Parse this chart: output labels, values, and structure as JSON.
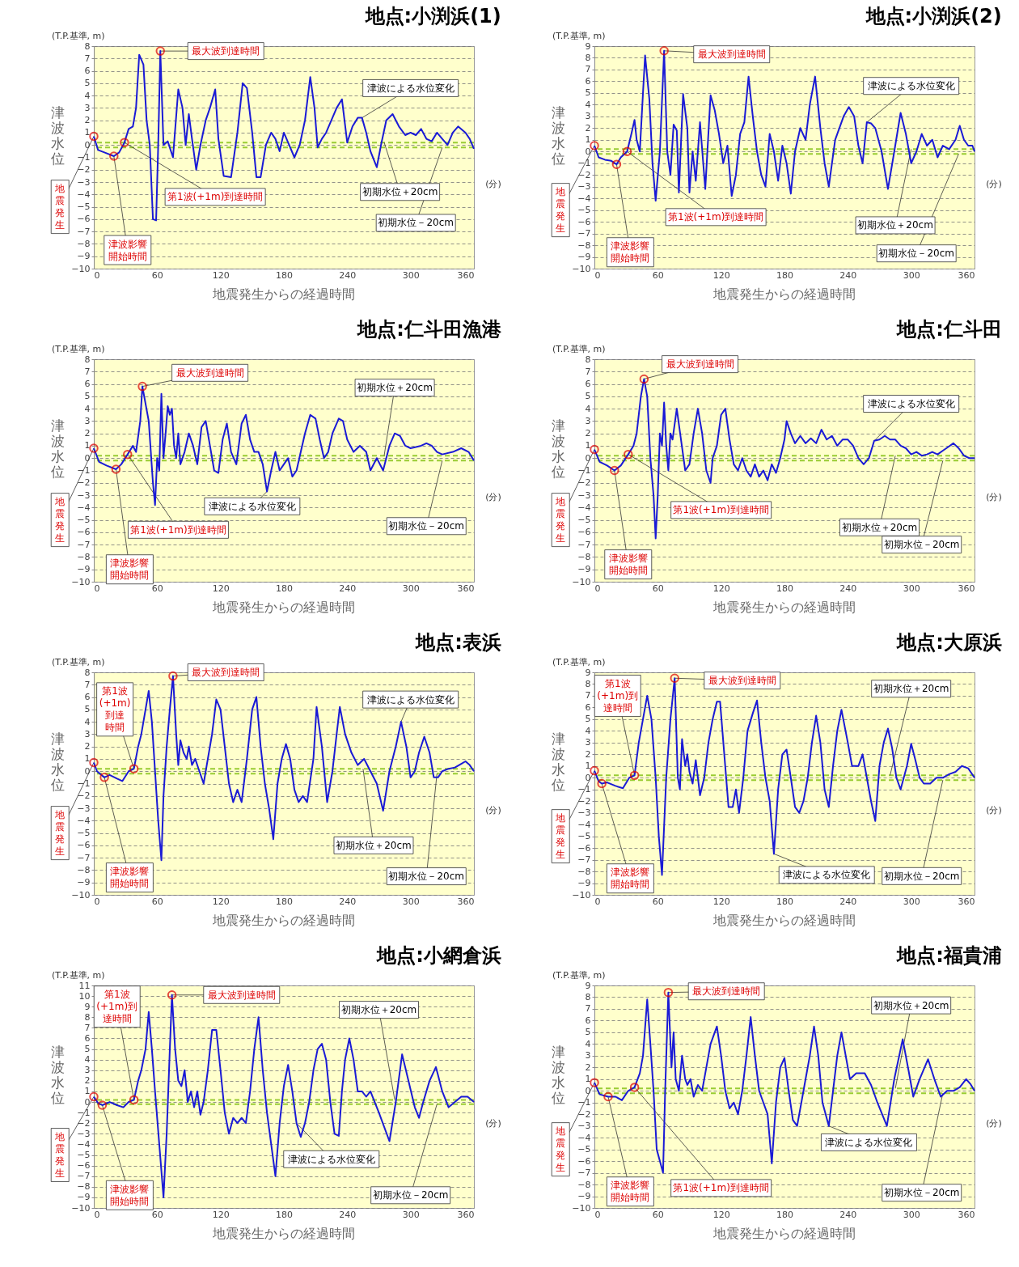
{
  "chart_data": [
    {
      "type": "line",
      "title": "地点:小渕浜(1)",
      "xlabel": "地震発生からの経過時間",
      "ylabel": "津波水位",
      "xlim": [
        0,
        360
      ],
      "xticks": [
        0,
        60,
        120,
        180,
        240,
        300,
        360
      ],
      "ylim": [
        -10,
        8
      ],
      "yticks": [
        -10,
        -9,
        -8,
        -7,
        -6,
        -5,
        -4,
        -3,
        -2,
        -1,
        0,
        1,
        2,
        3,
        4,
        5,
        6,
        7,
        8
      ],
      "grid": "y",
      "series": [
        {
          "color": "#1a1ad6",
          "x": [
            0,
            4,
            10,
            19,
            24,
            29,
            33,
            37,
            40,
            43,
            47,
            50,
            53,
            56,
            59,
            61,
            63,
            66,
            70,
            75,
            80,
            84,
            87,
            90,
            93,
            97,
            101,
            106,
            110,
            115,
            118,
            123,
            130,
            136,
            141,
            145,
            150,
            154,
            158,
            163,
            168,
            172,
            176,
            180,
            185,
            190,
            195,
            200,
            205,
            209,
            212,
            216,
            220,
            225,
            230,
            235,
            240,
            245,
            250,
            254,
            258,
            262,
            268,
            272,
            277,
            283,
            289,
            295,
            300,
            305,
            310,
            315,
            320,
            325,
            330,
            335,
            340,
            345,
            352,
            356,
            360
          ],
          "values": [
            0.7,
            -0.4,
            -0.6,
            -0.9,
            -0.6,
            0.2,
            1.3,
            1.5,
            3,
            7.3,
            6.5,
            2,
            0,
            -6,
            -6.1,
            0,
            7.6,
            0,
            0.3,
            -1,
            4.5,
            3,
            0,
            2.5,
            0.5,
            -2,
            0,
            2,
            3,
            4.5,
            0.5,
            -2.5,
            -2.6,
            1,
            5,
            4.6,
            1,
            -2.6,
            -2.6,
            0,
            1,
            0.5,
            -0.5,
            1,
            0,
            -1,
            0,
            2,
            5.5,
            3,
            -0.2,
            0.5,
            1,
            2,
            3,
            3.7,
            0.2,
            1.5,
            2.2,
            2.2,
            1,
            -0.5,
            -1.8,
            0,
            2,
            2.5,
            1.5,
            0.8,
            1,
            0.8,
            1.3,
            0.5,
            0.3,
            1,
            0.5,
            0,
            1,
            1.5,
            1,
            0.5,
            -0.3
          ]
        }
      ],
      "ref_lines": [
        {
          "axis": "y",
          "value": 0.2,
          "label": "初期水位＋20cm",
          "color": "#99cc33",
          "line_style": "dashed"
        },
        {
          "axis": "y",
          "value": -0.2,
          "label": "初期水位－20cm",
          "color": "#99cc33",
          "line_style": "dashed"
        }
      ],
      "annotations": [
        {
          "text": "地震発生",
          "x": 0,
          "y": 0.7
        },
        {
          "text": "津波影響開始時間",
          "x": 19,
          "y": -0.9
        },
        {
          "text": "第1波(+1m)到達時間",
          "x": 29,
          "y": 0.2
        },
        {
          "text": "最大波到達時間",
          "x": 63,
          "y": 7.6
        },
        {
          "text": "津波による水位変化",
          "x": 254,
          "y": 2.2
        },
        "(T.P.基準, m)",
        "(分)"
      ]
    },
    {
      "type": "line",
      "title": "地点:小渕浜(2)",
      "xlabel": "地震発生からの経過時間",
      "ylabel": "津波水位",
      "xlim": [
        0,
        360
      ],
      "xticks": [
        0,
        60,
        120,
        180,
        240,
        300,
        360
      ],
      "ylim": [
        -10,
        9
      ],
      "yticks": [
        -10,
        -9,
        -8,
        -7,
        -6,
        -5,
        -4,
        -3,
        -2,
        -1,
        0,
        1,
        2,
        3,
        4,
        5,
        6,
        7,
        8,
        9
      ],
      "grid": "y",
      "series": [
        {
          "color": "#1a1ad6",
          "x": [
            0,
            4,
            10,
            16,
            21,
            25,
            31,
            35,
            38,
            40,
            43,
            46,
            48,
            52,
            55,
            58,
            62,
            66,
            69,
            72,
            75,
            78,
            80,
            84,
            88,
            90,
            93,
            96,
            100,
            105,
            110,
            114,
            118,
            122,
            126,
            130,
            134,
            138,
            142,
            146,
            150,
            154,
            158,
            162,
            166,
            170,
            174,
            178,
            182,
            186,
            190,
            195,
            200,
            204,
            209,
            214,
            218,
            222,
            228,
            232,
            236,
            241,
            246,
            250,
            254,
            258,
            262,
            266,
            272,
            278,
            284,
            290,
            295,
            300,
            305,
            310,
            315,
            320,
            325,
            330,
            336,
            342,
            346,
            350,
            354,
            358,
            360
          ],
          "values": [
            0.5,
            -0.5,
            -0.7,
            -0.8,
            -1.1,
            -0.5,
            0,
            1.5,
            2.7,
            1,
            0,
            5,
            8.2,
            4.5,
            -1,
            -4.2,
            0,
            8.6,
            0,
            -2,
            2.3,
            1.8,
            -3.5,
            4.9,
            2,
            -3.5,
            0,
            -2.5,
            2.5,
            -3.2,
            4.8,
            3.5,
            1.5,
            -1,
            0.5,
            -3.8,
            -2,
            1.5,
            2.5,
            6.4,
            3,
            0,
            -2,
            -3,
            1.5,
            0,
            -2.5,
            0.5,
            -1,
            -3.6,
            0,
            2,
            1,
            4,
            6.4,
            2,
            -1,
            -3,
            1,
            2,
            3,
            3.8,
            3,
            0.5,
            -1,
            2.5,
            2.4,
            2,
            0,
            -3.2,
            0,
            3.3,
            1.5,
            -1,
            0,
            1.5,
            0.5,
            1,
            -0.5,
            0.5,
            0.2,
            1,
            2.2,
            1,
            0.5,
            0.5,
            0
          ]
        }
      ],
      "ref_lines": [
        {
          "axis": "y",
          "value": 0.2,
          "label": "初期水位＋20cm",
          "color": "#99cc33",
          "line_style": "dashed"
        },
        {
          "axis": "y",
          "value": -0.2,
          "label": "初期水位－20cm",
          "color": "#99cc33",
          "line_style": "dashed"
        }
      ],
      "annotations": [
        {
          "text": "地震発生",
          "x": 0,
          "y": 0.5
        },
        {
          "text": "津波影響開始時間",
          "x": 21,
          "y": -1.1
        },
        {
          "text": "第1波(+1m)到達時間",
          "x": 31,
          "y": 0
        },
        {
          "text": "最大波到達時間",
          "x": 66,
          "y": 8.6
        },
        {
          "text": "津波による水位変化",
          "x": 258,
          "y": 2.5
        },
        "(T.P.基準, m)",
        "(分)"
      ]
    },
    {
      "type": "line",
      "title": "地点:仁斗田漁港",
      "xlabel": "地震発生からの経過時間",
      "ylabel": "津波水位",
      "xlim": [
        0,
        360
      ],
      "xticks": [
        0,
        60,
        120,
        180,
        240,
        300,
        360
      ],
      "ylim": [
        -10,
        8
      ],
      "yticks": [
        -10,
        -9,
        -8,
        -7,
        -6,
        -5,
        -4,
        -3,
        -2,
        -1,
        0,
        1,
        2,
        3,
        4,
        5,
        6,
        7,
        8
      ],
      "grid": "y",
      "series": [
        {
          "color": "#1a1ad6",
          "x": [
            0,
            5,
            12,
            21,
            26,
            32,
            37,
            40,
            44,
            46,
            52,
            56,
            58,
            60,
            62,
            64,
            66,
            68,
            70,
            72,
            74,
            76,
            78,
            80,
            82,
            86,
            90,
            94,
            98,
            102,
            106,
            110,
            114,
            118,
            122,
            126,
            130,
            135,
            140,
            144,
            148,
            152,
            156,
            160,
            164,
            168,
            172,
            176,
            180,
            184,
            188,
            192,
            196,
            200,
            205,
            210,
            214,
            218,
            222,
            226,
            232,
            236,
            240,
            246,
            252,
            258,
            262,
            268,
            274,
            280,
            285,
            290,
            295,
            300,
            310,
            315,
            320,
            325,
            330,
            340,
            348,
            355,
            360
          ],
          "values": [
            0.8,
            -0.3,
            -0.6,
            -0.9,
            -0.5,
            0.3,
            1,
            0.5,
            3,
            5.8,
            3,
            -2,
            -3.8,
            0,
            -1,
            5.2,
            0,
            2,
            4.2,
            3.5,
            4,
            1,
            0,
            2,
            -0.5,
            0.5,
            2,
            1,
            -0.5,
            2.5,
            3,
            1,
            -1,
            -1.2,
            1.5,
            2.8,
            0.5,
            -0.5,
            2.8,
            3.5,
            1.5,
            0.5,
            0.5,
            -0.5,
            -2.7,
            -1,
            0.5,
            -1,
            -0.5,
            0,
            -1.5,
            -1,
            0.5,
            2,
            3.5,
            3.2,
            1.5,
            0,
            0.5,
            2,
            3.2,
            3,
            1.5,
            0.5,
            1,
            0.5,
            -1,
            0,
            -1,
            1,
            2,
            1.8,
            1,
            0.8,
            1,
            1.2,
            1,
            0.5,
            0.3,
            0.5,
            0.8,
            0.5,
            -0.2
          ]
        }
      ],
      "ref_lines": [
        {
          "axis": "y",
          "value": 0.2,
          "label": "初期水位＋20cm",
          "color": "#99cc33",
          "line_style": "dashed"
        },
        {
          "axis": "y",
          "value": -0.2,
          "label": "初期水位－20cm",
          "color": "#99cc33",
          "line_style": "dashed"
        }
      ],
      "annotations": [
        {
          "text": "地震発生",
          "x": 0,
          "y": 0.8
        },
        {
          "text": "津波影響開始時間",
          "x": 21,
          "y": -0.9
        },
        {
          "text": "第1波(+1m)到達時間",
          "x": 32,
          "y": 0.3
        },
        {
          "text": "最大波到達時間",
          "x": 46,
          "y": 5.8
        },
        {
          "text": "津波による水位変化",
          "x": 164,
          "y": -2.7
        },
        "(T.P.基準, m)",
        "(分)"
      ]
    },
    {
      "type": "line",
      "title": "地点:仁斗田",
      "xlabel": "地震発生からの経過時間",
      "ylabel": "津波水位",
      "xlim": [
        0,
        360
      ],
      "xticks": [
        0,
        60,
        120,
        180,
        240,
        300,
        360
      ],
      "ylim": [
        -10,
        8
      ],
      "yticks": [
        -10,
        -9,
        -8,
        -7,
        -6,
        -5,
        -4,
        -3,
        -2,
        -1,
        0,
        1,
        2,
        3,
        4,
        5,
        6,
        7,
        8
      ],
      "grid": "y",
      "series": [
        {
          "color": "#1a1ad6",
          "x": [
            0,
            5,
            12,
            19,
            25,
            32,
            37,
            40,
            44,
            47,
            50,
            53,
            56,
            58,
            60,
            62,
            64,
            66,
            68,
            70,
            72,
            74,
            78,
            82,
            86,
            90,
            94,
            98,
            102,
            106,
            110,
            112,
            116,
            120,
            124,
            128,
            132,
            136,
            140,
            144,
            148,
            152,
            156,
            160,
            164,
            168,
            172,
            176,
            180,
            182,
            186,
            190,
            195,
            200,
            205,
            210,
            215,
            220,
            225,
            230,
            235,
            240,
            245,
            250,
            255,
            260,
            265,
            270,
            275,
            280,
            285,
            290,
            295,
            300,
            305,
            310,
            315,
            320,
            325,
            330,
            335,
            340,
            345,
            350,
            355,
            360
          ],
          "values": [
            0.7,
            -0.3,
            -0.6,
            -1,
            -0.6,
            0.3,
            1,
            2,
            5,
            6.4,
            5,
            0,
            -3,
            -6.5,
            -3,
            2,
            1,
            4.5,
            1,
            -1,
            2,
            1.5,
            4,
            1.5,
            -1,
            -0.5,
            2,
            4,
            2,
            -1,
            -2,
            0,
            1,
            3.5,
            4,
            1.5,
            -0.5,
            -1,
            0,
            -1,
            -1.5,
            -0.5,
            -1.5,
            -1,
            -1.8,
            -0.5,
            -1.2,
            0,
            1.5,
            3,
            2,
            1.2,
            1.8,
            1.2,
            1.6,
            1.2,
            2.3,
            1.5,
            1.8,
            1,
            1.5,
            1.5,
            1,
            0,
            -0.5,
            0,
            1.4,
            1.5,
            1.8,
            1.5,
            1.5,
            1,
            0.8,
            0.3,
            0.5,
            0.2,
            0.3,
            0.5,
            0.3,
            0.6,
            0.9,
            1.2,
            0.8,
            0.2,
            0,
            0
          ]
        }
      ],
      "ref_lines": [
        {
          "axis": "y",
          "value": 0.2,
          "label": "初期水位＋20cm",
          "color": "#99cc33",
          "line_style": "dashed"
        },
        {
          "axis": "y",
          "value": -0.2,
          "label": "初期水位－20cm",
          "color": "#99cc33",
          "line_style": "dashed"
        }
      ],
      "annotations": [
        {
          "text": "地震発生",
          "x": 0,
          "y": 0.7
        },
        {
          "text": "津波影響開始時間",
          "x": 19,
          "y": -1
        },
        {
          "text": "第1波(+1m)到達時間",
          "x": 32,
          "y": 0.3
        },
        {
          "text": "最大波到達時間",
          "x": 47,
          "y": 6.4
        },
        {
          "text": "津波による水位変化",
          "x": 265,
          "y": 1.4
        },
        "(T.P.基準, m)",
        "(分)"
      ]
    },
    {
      "type": "line",
      "title": "地点:表浜",
      "xlabel": "地震発生からの経過時間",
      "ylabel": "津波水位",
      "xlim": [
        0,
        360
      ],
      "xticks": [
        0,
        60,
        120,
        180,
        240,
        300,
        360
      ],
      "ylim": [
        -10,
        8
      ],
      "yticks": [
        -10,
        -9,
        -8,
        -7,
        -6,
        -5,
        -4,
        -3,
        -2,
        -1,
        0,
        1,
        2,
        3,
        4,
        5,
        6,
        7,
        8
      ],
      "grid": "y",
      "series": [
        {
          "color": "#1a1ad6",
          "x": [
            0,
            3,
            10,
            15,
            22,
            27,
            33,
            38,
            42,
            45,
            49,
            52,
            55,
            58,
            61,
            64,
            66,
            69,
            72,
            75,
            78,
            80,
            82,
            85,
            88,
            90,
            93,
            96,
            100,
            104,
            108,
            112,
            116,
            120,
            124,
            128,
            132,
            136,
            140,
            145,
            150,
            154,
            158,
            162,
            166,
            170,
            174,
            178,
            182,
            186,
            190,
            194,
            198,
            202,
            208,
            211,
            216,
            221,
            226,
            230,
            233,
            238,
            244,
            250,
            256,
            262,
            268,
            274,
            280,
            286,
            291,
            296,
            300,
            304,
            308,
            313,
            318,
            322,
            326,
            330,
            336,
            342,
            348,
            352,
            356,
            360
          ],
          "values": [
            0.7,
            0,
            -0.5,
            -0.3,
            -0.6,
            -0.8,
            0,
            0.2,
            2,
            3,
            5,
            6.5,
            4,
            0,
            -4,
            -7.2,
            -2,
            2,
            5,
            7.7,
            3,
            0.5,
            2.5,
            1.5,
            1,
            2,
            0.5,
            1,
            0,
            -1,
            1,
            3,
            5.8,
            5,
            2,
            -1,
            -2.5,
            -1.5,
            -2.5,
            1,
            5,
            6,
            2,
            -1,
            -3,
            -5.5,
            -1,
            1,
            2.2,
            1,
            -1.5,
            -2.5,
            -2,
            -2.5,
            1,
            5.2,
            2,
            -2.5,
            0,
            3,
            5.2,
            3,
            1.5,
            0.5,
            1,
            0,
            -1,
            -3.2,
            0,
            2,
            4,
            2,
            -0.5,
            0,
            1.5,
            2.8,
            1.5,
            -0.5,
            -0.5,
            0,
            0.2,
            0.3,
            0.6,
            0.8,
            0.5,
            0
          ]
        }
      ],
      "ref_lines": [
        {
          "axis": "y",
          "value": 0.2,
          "label": "初期水位＋20cm",
          "color": "#99cc33",
          "line_style": "dashed"
        },
        {
          "axis": "y",
          "value": -0.2,
          "label": "初期水位－20cm",
          "color": "#99cc33",
          "line_style": "dashed"
        }
      ],
      "annotations": [
        {
          "text": "地震発生",
          "x": 0,
          "y": 0.7
        },
        {
          "text": "津波影響開始時間",
          "x": 10,
          "y": -0.5
        },
        {
          "text": "第1波(+1m)到達時間",
          "x": 38,
          "y": 0.2
        },
        {
          "text": "最大波到達時間",
          "x": 75,
          "y": 7.7
        },
        {
          "text": "津波による水位変化",
          "x": 291,
          "y": 4
        },
        "(T.P.基準, m)",
        "(分)"
      ]
    },
    {
      "type": "line",
      "title": "地点:大原浜",
      "xlabel": "地震発生からの経過時間",
      "ylabel": "津波水位",
      "xlim": [
        0,
        360
      ],
      "xticks": [
        0,
        60,
        120,
        180,
        240,
        300,
        360
      ],
      "ylim": [
        -10,
        9
      ],
      "yticks": [
        -10,
        -9,
        -8,
        -7,
        -6,
        -5,
        -4,
        -3,
        -2,
        -1,
        0,
        1,
        2,
        3,
        4,
        5,
        6,
        7,
        8,
        9
      ],
      "grid": "y",
      "series": [
        {
          "color": "#1a1ad6",
          "x": [
            0,
            4,
            7,
            12,
            20,
            27,
            33,
            38,
            42,
            46,
            50,
            54,
            58,
            61,
            64,
            68,
            72,
            76,
            79,
            81,
            83,
            86,
            88,
            90,
            93,
            96,
            100,
            104,
            108,
            112,
            116,
            119,
            123,
            127,
            131,
            134,
            137,
            141,
            145,
            150,
            154,
            158,
            162,
            166,
            170,
            174,
            178,
            182,
            186,
            190,
            194,
            198,
            202,
            206,
            210,
            214,
            218,
            222,
            226,
            230,
            234,
            240,
            244,
            250,
            254,
            258,
            262,
            266,
            270,
            274,
            278,
            282,
            286,
            290,
            296,
            300,
            304,
            308,
            312,
            318,
            324,
            330,
            336,
            342,
            348,
            354,
            360
          ],
          "values": [
            0.6,
            -0.3,
            -0.5,
            -0.4,
            -0.7,
            -0.9,
            0,
            0.2,
            3,
            5,
            7,
            5,
            0,
            -5,
            -8.3,
            0,
            5,
            8.5,
            0,
            -1,
            3.3,
            1,
            2,
            0.5,
            -0.5,
            1.5,
            -1.5,
            0,
            3,
            5,
            6.5,
            6.5,
            2,
            -2.5,
            -2.5,
            -1,
            -3,
            0,
            4,
            5.5,
            6.6,
            3,
            0,
            -2,
            -6.5,
            -1,
            2,
            2.4,
            0,
            -2.5,
            -3,
            -2,
            0,
            3,
            5.3,
            3,
            -1,
            -2.5,
            1,
            4,
            5.8,
            3,
            1,
            1,
            2,
            0,
            -2,
            -3.7,
            1,
            3,
            4.2,
            2.5,
            0,
            -1,
            1,
            2.9,
            1.5,
            0,
            -0.5,
            -0.5,
            0,
            0,
            0.3,
            0.5,
            1,
            0.8,
            0
          ]
        }
      ],
      "ref_lines": [
        {
          "axis": "y",
          "value": 0.2,
          "label": "初期水位＋20cm",
          "color": "#99cc33",
          "line_style": "dashed"
        },
        {
          "axis": "y",
          "value": -0.2,
          "label": "初期水位－20cm",
          "color": "#99cc33",
          "line_style": "dashed"
        }
      ],
      "annotations": [
        {
          "text": "地震発生",
          "x": 0,
          "y": 0.6
        },
        {
          "text": "津波影響開始時間",
          "x": 7,
          "y": -0.5
        },
        {
          "text": "第1波(+1m)到達時間",
          "x": 38,
          "y": 0.2
        },
        {
          "text": "最大波到達時間",
          "x": 76,
          "y": 8.5
        },
        {
          "text": "津波による水位変化",
          "x": 170,
          "y": -6.5
        },
        "(T.P.基準, m)",
        "(分)"
      ]
    },
    {
      "type": "line",
      "title": "地点:小網倉浜",
      "xlabel": "地震発生からの経過時間",
      "ylabel": "津波水位",
      "xlim": [
        0,
        360
      ],
      "xticks": [
        0,
        60,
        120,
        180,
        240,
        300,
        360
      ],
      "ylim": [
        -10,
        11
      ],
      "yticks": [
        -10,
        -9,
        -8,
        -7,
        -6,
        -5,
        -4,
        -3,
        -2,
        -1,
        0,
        1,
        2,
        3,
        4,
        5,
        6,
        7,
        8,
        9,
        10,
        11
      ],
      "grid": "y",
      "series": [
        {
          "color": "#1a1ad6",
          "x": [
            0,
            4,
            8,
            15,
            22,
            28,
            33,
            38,
            42,
            45,
            49,
            52,
            55,
            58,
            62,
            66,
            69,
            72,
            74,
            77,
            80,
            83,
            86,
            89,
            92,
            95,
            98,
            101,
            104,
            108,
            112,
            116,
            120,
            124,
            128,
            132,
            136,
            140,
            144,
            148,
            152,
            156,
            160,
            164,
            168,
            172,
            176,
            180,
            184,
            188,
            192,
            196,
            200,
            204,
            208,
            212,
            216,
            220,
            224,
            228,
            232,
            235,
            238,
            242,
            246,
            250,
            254,
            258,
            262,
            270,
            280,
            286,
            292,
            298,
            304,
            308,
            312,
            318,
            324,
            330,
            336,
            342,
            348,
            354,
            360
          ],
          "values": [
            0.5,
            -0.1,
            -0.3,
            0,
            -0.3,
            -0.5,
            0,
            0.2,
            2,
            3,
            5,
            8.5,
            5,
            1,
            -4,
            -9,
            -3,
            5,
            10.1,
            5,
            2,
            1.5,
            3,
            0,
            1,
            -0.5,
            1,
            -1.2,
            0,
            3,
            6.8,
            6.8,
            3,
            -1,
            -3,
            -1.5,
            -2,
            -1.5,
            -2,
            1,
            5,
            8,
            3,
            -1,
            -4,
            -7,
            -2,
            1.5,
            3.5,
            1,
            -2,
            -3.3,
            -2,
            0,
            3,
            5,
            5.5,
            4,
            0,
            -3,
            -3.2,
            1,
            4,
            6,
            4,
            1,
            1,
            0.5,
            1,
            -1,
            -3.7,
            0,
            4.5,
            2,
            -0.5,
            -1.5,
            0,
            2,
            3.3,
            1,
            -0.5,
            0,
            0.5,
            0.5,
            0
          ]
        }
      ],
      "ref_lines": [
        {
          "axis": "y",
          "value": 0.2,
          "label": "初期水位＋20cm",
          "color": "#99cc33",
          "line_style": "dashed"
        },
        {
          "axis": "y",
          "value": -0.2,
          "label": "初期水位－20cm",
          "color": "#99cc33",
          "line_style": "dashed"
        }
      ],
      "annotations": [
        {
          "text": "地震発生",
          "x": 0,
          "y": 0.5
        },
        {
          "text": "津波影響開始時間",
          "x": 8,
          "y": -0.3
        },
        {
          "text": "第1波(+1m)到達時間",
          "x": 38,
          "y": 0.2
        },
        {
          "text": "最大波到達時間",
          "x": 74,
          "y": 10.1
        },
        {
          "text": "津波による水位変化",
          "x": 192,
          "y": -2
        },
        "(T.P.基準, m)",
        "(分)"
      ]
    },
    {
      "type": "line",
      "title": "地点:福貴浦",
      "xlabel": "地震発生からの経過時間",
      "ylabel": "津波水位",
      "xlim": [
        0,
        360
      ],
      "xticks": [
        0,
        60,
        120,
        180,
        240,
        300,
        360
      ],
      "ylim": [
        -10,
        9
      ],
      "yticks": [
        -10,
        -9,
        -8,
        -7,
        -6,
        -5,
        -4,
        -3,
        -2,
        -1,
        0,
        1,
        2,
        3,
        4,
        5,
        6,
        7,
        8,
        9
      ],
      "grid": "y",
      "series": [
        {
          "color": "#1a1ad6",
          "x": [
            0,
            5,
            13,
            20,
            26,
            32,
            38,
            43,
            46,
            50,
            53,
            56,
            59,
            62,
            65,
            67,
            70,
            73,
            75,
            77,
            80,
            83,
            86,
            88,
            91,
            94,
            98,
            102,
            106,
            110,
            116,
            120,
            124,
            128,
            132,
            136,
            140,
            144,
            148,
            152,
            156,
            160,
            164,
            168,
            172,
            176,
            180,
            184,
            188,
            192,
            196,
            200,
            204,
            208,
            212,
            216,
            222,
            226,
            230,
            234,
            238,
            242,
            248,
            252,
            256,
            262,
            268,
            277,
            284,
            292,
            298,
            302,
            308,
            316,
            322,
            328,
            334,
            340,
            346,
            352,
            356,
            360
          ],
          "values": [
            0.7,
            -0.3,
            -0.5,
            -0.5,
            -0.8,
            0,
            0.3,
            1.5,
            3,
            7.8,
            4,
            0,
            -5,
            -6,
            -7,
            0,
            8.4,
            2,
            5,
            1,
            0,
            3,
            1,
            0.5,
            1,
            -0.5,
            0.5,
            0,
            2,
            4,
            5.5,
            3,
            0,
            -1.5,
            -1,
            -2,
            0,
            3,
            6.3,
            3,
            0,
            -1,
            -2,
            -6.2,
            -1,
            2,
            2.8,
            0,
            -2.5,
            -3,
            -1,
            1,
            3,
            5.5,
            3,
            -1,
            -3,
            0,
            3,
            5,
            3,
            1,
            1.5,
            1.5,
            1.5,
            0.5,
            -1,
            -3,
            1,
            4.4,
            1.5,
            -0.5,
            1,
            2.7,
            1,
            -0.5,
            0,
            0,
            0.3,
            1,
            0.6,
            0
          ]
        }
      ],
      "ref_lines": [
        {
          "axis": "y",
          "value": 0.2,
          "label": "初期水位＋20cm",
          "color": "#99cc33",
          "line_style": "dashed"
        },
        {
          "axis": "y",
          "value": -0.2,
          "label": "初期水位－20cm",
          "color": "#99cc33",
          "line_style": "dashed"
        }
      ],
      "annotations": [
        {
          "text": "地震発生",
          "x": 0,
          "y": 0.7
        },
        {
          "text": "津波影響開始時間",
          "x": 13,
          "y": -0.5
        },
        {
          "text": "第1波(+1m)到達時間",
          "x": 38,
          "y": 0.3
        },
        {
          "text": "最大波到達時間",
          "x": 70,
          "y": 8.4
        },
        {
          "text": "津波による水位変化",
          "x": 222,
          "y": -3
        },
        "(T.P.基準, m)",
        "(分)"
      ]
    }
  ]
}
